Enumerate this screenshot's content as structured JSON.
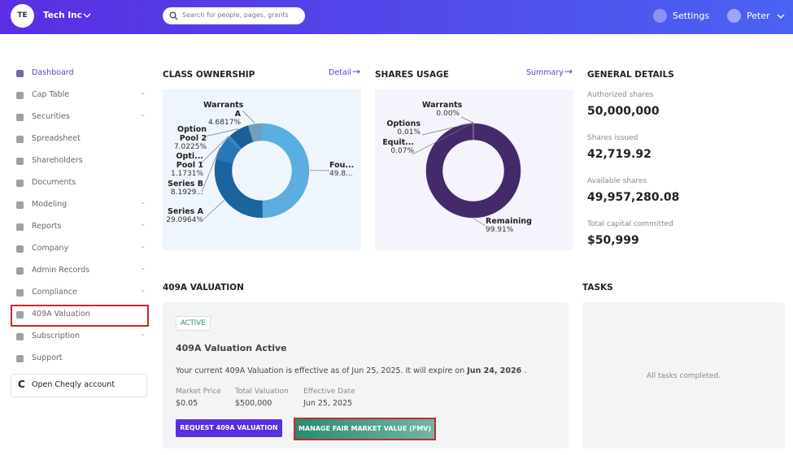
{
  "header": {
    "org_initials": "TE",
    "org_name": "Tech Inc",
    "search_placeholder": "Search for people, pages, grants",
    "settings": "Settings",
    "user": "Peter"
  },
  "sidebar": {
    "items": [
      "Dashboard",
      "Cap Table",
      "Securities",
      "Spreadsheet",
      "Shareholders",
      "Documents",
      "Modeling",
      "Reports",
      "Company",
      "Admin Records",
      "Compliance",
      "409A Valuation",
      "Subscription",
      "Support"
    ],
    "open_account": "Open Cheqly account"
  },
  "class_ownership": {
    "title": "CLASS OWNERSHIP",
    "link": "Detail",
    "chart_data": {
      "type": "donut",
      "slices": [
        {
          "name": "Fou...",
          "value": 49.8334,
          "value_label": "49.8...",
          "color": "#5aaee0"
        },
        {
          "name": "Series A",
          "value": 29.0964,
          "value_label": "29.0964%",
          "color": "#1a64a0"
        },
        {
          "name": "Series B",
          "value": 8.1929,
          "value_label": "8.1929...",
          "color": "#2778b8"
        },
        {
          "name": "Opti... Pool 1",
          "value": 1.1731,
          "value_label": "1.1731%",
          "color": "#3b86c4"
        },
        {
          "name": "Option Pool 2",
          "value": 7.0225,
          "value_label": "7.0225%",
          "color": "#1e5e96"
        },
        {
          "name": "Warrants A",
          "value": 4.6817,
          "value_label": "4.6817%",
          "color": "#6f9fbd"
        }
      ]
    }
  },
  "shares_usage": {
    "title": "SHARES USAGE",
    "link": "Summary",
    "chart_data": {
      "type": "donut",
      "slices": [
        {
          "name": "Remaining",
          "value": 99.91,
          "value_label": "99.91%",
          "color": "#452a6b"
        },
        {
          "name": "Equit...",
          "value": 0.07,
          "value_label": "0.07%",
          "color": "#6b4f94"
        },
        {
          "name": "Options",
          "value": 0.01,
          "value_label": "0.01%",
          "color": "#8a70b0"
        },
        {
          "name": "Warrants",
          "value": 0.0,
          "value_label": "0.00%",
          "color": "#a995c8"
        }
      ]
    }
  },
  "general_details": {
    "title": "GENERAL DETAILS",
    "items": [
      {
        "label": "Authorized shares",
        "value": "50,000,000"
      },
      {
        "label": "Shares issued",
        "value": "42,719.92"
      },
      {
        "label": "Available shares",
        "value": "49,957,280.08"
      },
      {
        "label": "Total capital committed",
        "value": "$50,999"
      }
    ]
  },
  "valuation": {
    "title": "409A VALUATION",
    "badge": "ACTIVE",
    "heading": "409A Valuation Active",
    "description": [
      "Your current 409A Valuation is effective as of Jun 25, 2025. It will expire on ",
      "Jun 24, 2026",
      " ."
    ],
    "fields": [
      {
        "label": "Market Price",
        "value": "$0.05"
      },
      {
        "label": "Total Valuation",
        "value": "$500,000"
      },
      {
        "label": "Effective Date",
        "value": "Jun 25, 2025"
      }
    ],
    "buttons": [
      "REQUEST 409A VALUATION",
      "MANAGE FAIR MARKET VALUE (FMV)"
    ]
  },
  "tasks": {
    "title": "TASKS",
    "empty": "All tasks completed."
  }
}
